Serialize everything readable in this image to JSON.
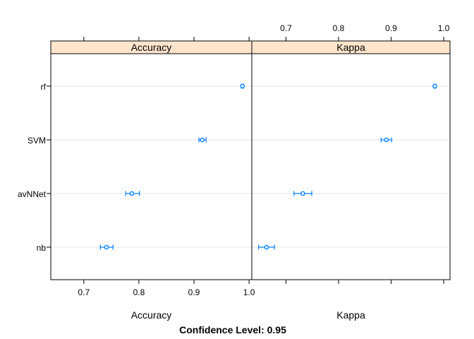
{
  "chart_data": {
    "type": "dotplot-ci",
    "caption": "Confidence Level: 0.95",
    "categories": [
      "rf",
      "SVM",
      "avNNet",
      "nb"
    ],
    "panels": [
      {
        "name": "Accuracy",
        "strip_label": "Accuracy",
        "xlabel": "Accuracy",
        "xlim": [
          0.64,
          1.005
        ],
        "ticks": [
          0.7,
          0.8,
          0.9,
          1.0
        ],
        "tick_labels": [
          "0.7",
          "0.8",
          "0.9",
          "1.0"
        ],
        "tick_label_side": "bottom",
        "estimates": [
          {
            "model": "rf",
            "value": 0.988,
            "lower": 0.986,
            "upper": 0.99
          },
          {
            "model": "SVM",
            "value": 0.915,
            "lower": 0.909,
            "upper": 0.922
          },
          {
            "model": "avNNet",
            "value": 0.787,
            "lower": 0.776,
            "upper": 0.801
          },
          {
            "model": "nb",
            "value": 0.741,
            "lower": 0.73,
            "upper": 0.753
          }
        ]
      },
      {
        "name": "Kappa",
        "strip_label": "Kappa",
        "xlabel": "Kappa",
        "xlim": [
          0.635,
          1.012
        ],
        "ticks": [
          0.7,
          0.8,
          0.9,
          1.0
        ],
        "tick_labels": [
          "0.7",
          "0.8",
          "0.9",
          "1.0"
        ],
        "tick_label_side": "top",
        "estimates": [
          {
            "model": "rf",
            "value": 0.983,
            "lower": 0.981,
            "upper": 0.985
          },
          {
            "model": "SVM",
            "value": 0.891,
            "lower": 0.881,
            "upper": 0.901
          },
          {
            "model": "avNNet",
            "value": 0.732,
            "lower": 0.715,
            "upper": 0.749
          },
          {
            "model": "nb",
            "value": 0.663,
            "lower": 0.648,
            "upper": 0.678
          }
        ]
      }
    ],
    "colors": {
      "strip_fill": "#ffe5cc",
      "point": "#0080ff",
      "grid": "#e6e6e6",
      "frame": "#000000"
    },
    "grid": true
  }
}
